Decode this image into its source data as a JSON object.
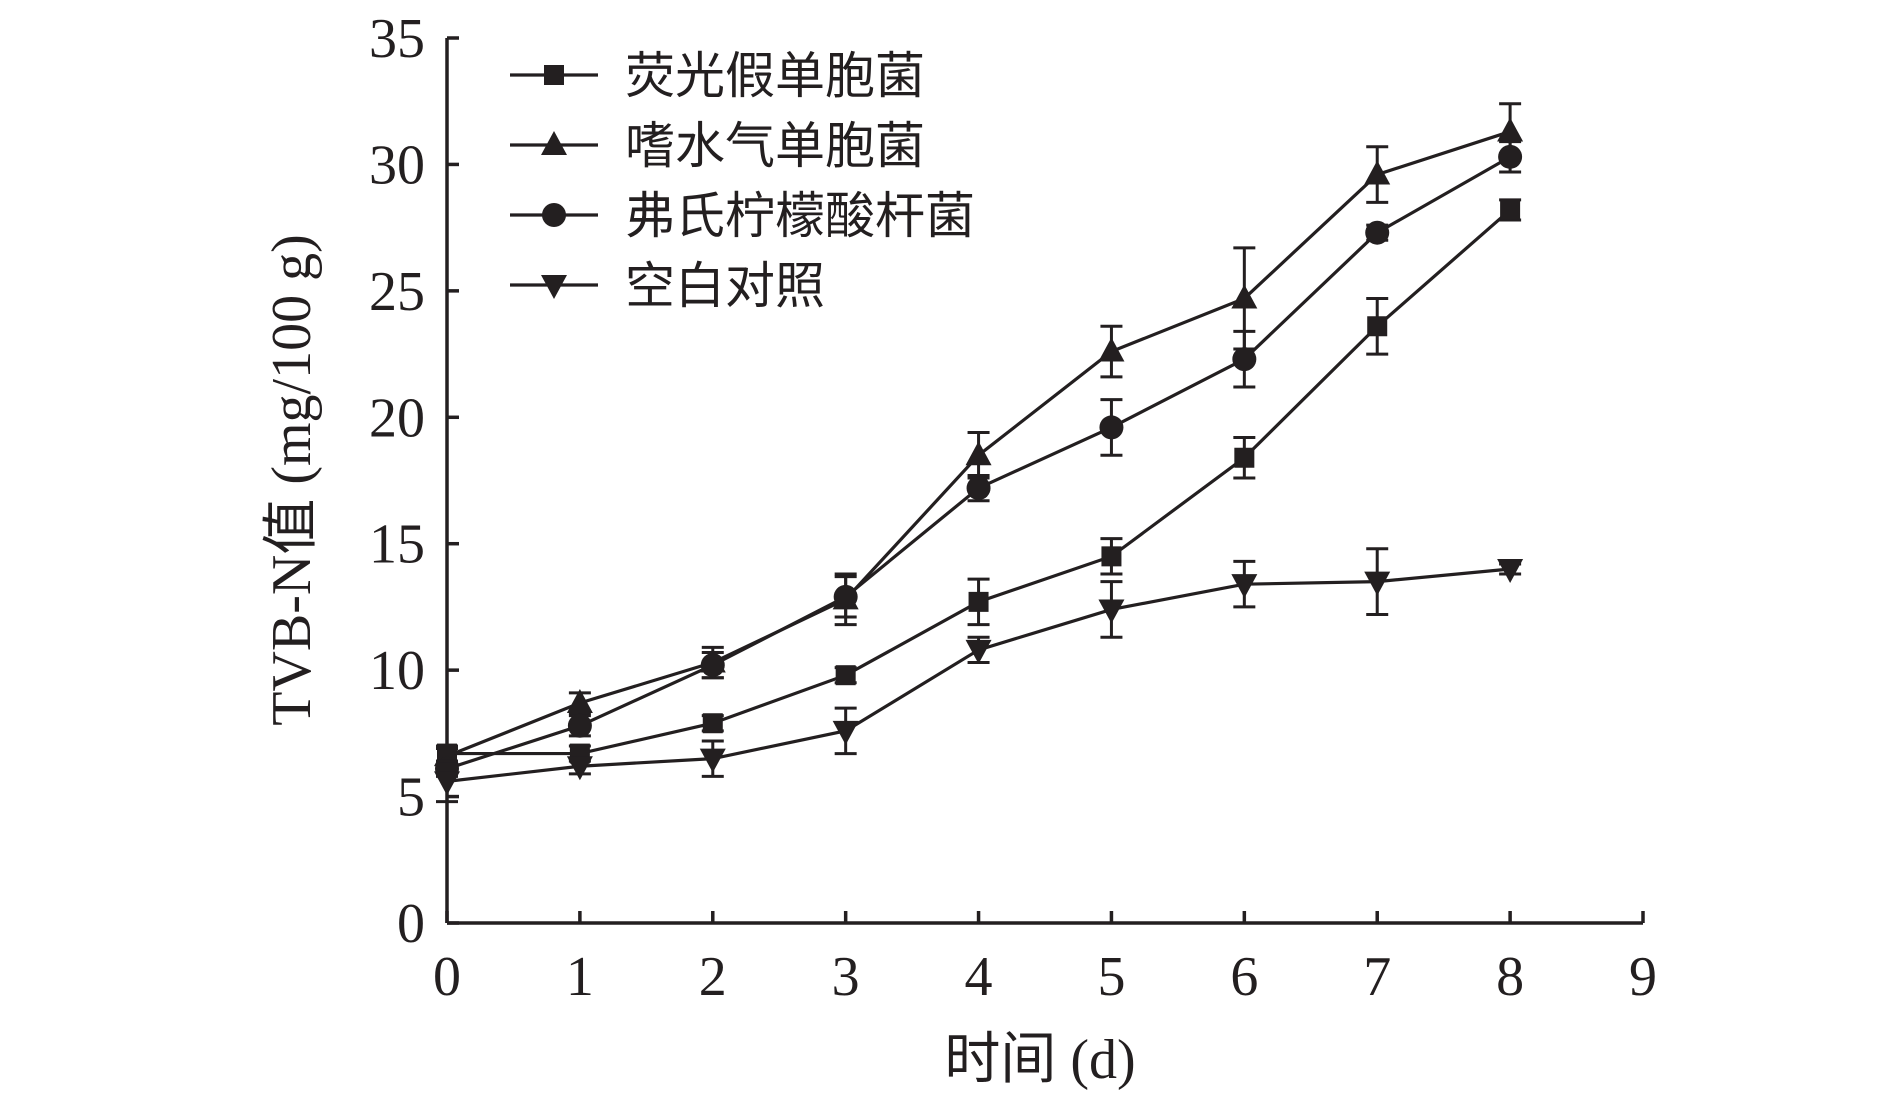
{
  "chart_data": {
    "type": "line",
    "xlabel": "时间 (d)",
    "ylabel": "TVB-N值 (mg/100 g)",
    "xlim": [
      0,
      9
    ],
    "ylim": [
      0,
      35
    ],
    "x_ticks": [
      0,
      1,
      2,
      3,
      4,
      5,
      6,
      7,
      8,
      9
    ],
    "y_ticks": [
      0,
      5,
      10,
      15,
      20,
      25,
      30,
      35
    ],
    "x_tick_labels": [
      "0",
      "1",
      "2",
      "3",
      "4",
      "5",
      "6",
      "7",
      "8",
      "9"
    ],
    "y_tick_labels": [
      "0",
      "5",
      "10",
      "15",
      "20",
      "25",
      "30",
      "35"
    ],
    "grid": false,
    "legend_position": "top-left",
    "x": [
      0,
      1,
      2,
      3,
      4,
      5,
      6,
      7,
      8
    ],
    "series": [
      {
        "name": "荧光假单胞菌",
        "marker": "square",
        "values": [
          6.7,
          6.7,
          7.9,
          9.8,
          12.7,
          14.5,
          18.4,
          23.6,
          28.2
        ],
        "errors": [
          0.3,
          0.3,
          0.3,
          0.3,
          0.9,
          0.7,
          0.8,
          1.1,
          0.4
        ]
      },
      {
        "name": "嗜水气单胞菌",
        "marker": "triangle-up",
        "values": [
          6.6,
          8.7,
          10.3,
          12.8,
          18.5,
          22.6,
          24.7,
          29.6,
          31.3
        ],
        "errors": [
          0.3,
          0.4,
          0.6,
          1.0,
          0.9,
          1.0,
          2.0,
          1.1,
          1.1
        ]
      },
      {
        "name": "弗氏柠檬酸杆菌",
        "marker": "circle",
        "values": [
          6.1,
          7.8,
          10.2,
          12.9,
          17.2,
          19.6,
          22.3,
          27.3,
          30.3
        ],
        "errors": [
          0.3,
          0.4,
          0.5,
          0.8,
          0.5,
          1.1,
          1.1,
          0.3,
          0.6
        ]
      },
      {
        "name": "空白对照",
        "marker": "triangle-down",
        "values": [
          5.6,
          6.2,
          6.5,
          7.6,
          10.8,
          12.4,
          13.4,
          13.5,
          14.0
        ],
        "errors": [
          0.8,
          0.3,
          0.7,
          0.9,
          0.5,
          1.1,
          0.9,
          1.3,
          0.2
        ]
      }
    ]
  },
  "colors": {
    "ink": "#231f20",
    "background": "#ffffff"
  }
}
